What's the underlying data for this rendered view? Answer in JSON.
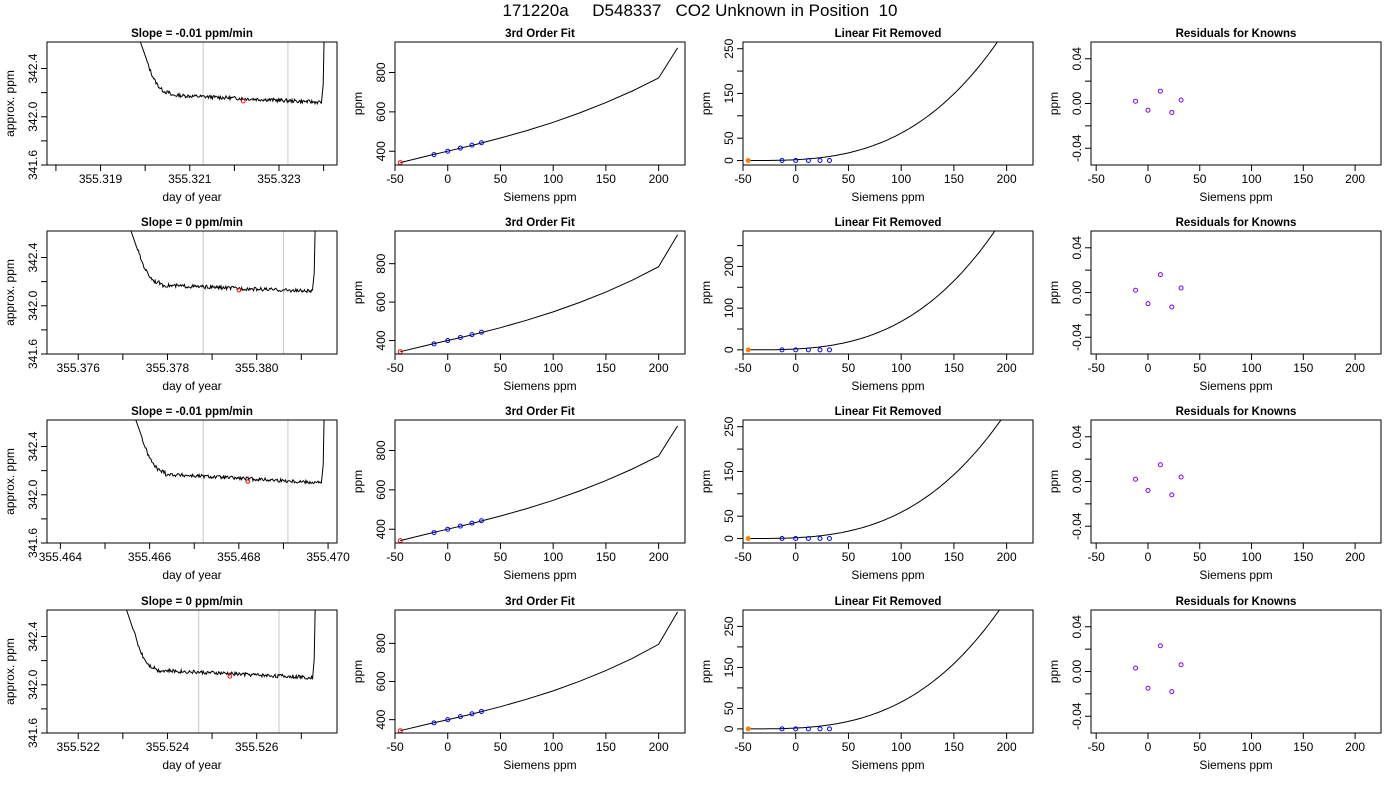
{
  "page": {
    "title": "171220a     D548337   CO2 Unknown in Position  10"
  },
  "chart_data": [
    {
      "type": "line",
      "title": "Slope =  -0.01  ppm/min",
      "xlabel": "day of year",
      "ylabel": "approx. ppm",
      "xlim": [
        355.3178,
        355.3243
      ],
      "ylim": [
        341.6,
        342.62
      ],
      "xticks": [
        "355.319",
        "355.321",
        "355.323"
      ],
      "xticks_minor": [
        355.318,
        355.32,
        355.322,
        355.324
      ],
      "yticks": [
        "341.6",
        "342.0",
        "342.4"
      ],
      "yticks_minor": [
        341.8,
        342.2
      ],
      "vlines": [
        355.3213,
        355.3232
      ],
      "series_color": "#000000",
      "vline_color": "#c8c8c8",
      "series": {
        "x_start": 355.3197,
        "x_spike_end": 355.32003,
        "x_flat_start": 355.32055,
        "x_end": 355.32395,
        "level_start": 342.18,
        "level_end": 342.12,
        "spike_top": 342.65
      },
      "marker": {
        "x": 355.3222,
        "y": 342.13,
        "color": "#ff0000"
      }
    },
    {
      "type": "scatter",
      "title": "3rd Order Fit",
      "xlabel": "Siemens ppm",
      "ylabel": "ppm",
      "xlim": [
        -50,
        225
      ],
      "ylim": [
        330,
        955
      ],
      "xticks": [
        -50,
        0,
        50,
        100,
        150,
        200
      ],
      "yticks": [
        400,
        600,
        800
      ],
      "curve": {
        "x": [
          -45,
          -20,
          0,
          25,
          50,
          75,
          100,
          125,
          150,
          175,
          200,
          218
        ],
        "y": [
          342,
          375,
          400,
          432,
          467,
          505,
          547,
          594,
          647,
          706,
          772,
          925
        ]
      },
      "known_points": {
        "x": [
          -13,
          0,
          12,
          23,
          32
        ],
        "y": [
          383,
          400,
          416,
          431,
          443
        ],
        "color": "#0000ff"
      },
      "unknown_point": {
        "x": -45,
        "y": 342,
        "color": "#ff0000"
      }
    },
    {
      "type": "scatter",
      "title": "Linear Fit Removed",
      "xlabel": "Siemens ppm",
      "ylabel": "ppm",
      "xlim": [
        -50,
        225
      ],
      "ylim": [
        -10,
        265
      ],
      "xticks": [
        -50,
        0,
        50,
        100,
        150,
        200
      ],
      "yticks": [
        0,
        50,
        150,
        250
      ],
      "yticks_minor": [
        100,
        200
      ],
      "curve_coef": 2.45e-05,
      "curve_x_end": 218,
      "known_points": {
        "x": [
          -13,
          0,
          12,
          23,
          32
        ],
        "y": [
          0,
          0,
          0,
          0,
          0
        ],
        "color": "#0000ff"
      },
      "unknown_point": {
        "x": -45,
        "y": 0,
        "color": "#ff7f00"
      }
    },
    {
      "type": "scatter",
      "title": "Residuals for Knowns",
      "xlabel": "Siemens ppm",
      "ylabel": "ppm",
      "xlim": [
        -55,
        225
      ],
      "ylim": [
        -0.055,
        0.055
      ],
      "xticks": [
        -50,
        0,
        50,
        100,
        150,
        200
      ],
      "yticks": [
        "-0.04",
        "0.00",
        "0.04"
      ],
      "yticks_minor": [
        -0.02,
        0.02
      ],
      "points": {
        "x": [
          -12,
          0,
          12,
          23,
          32
        ],
        "y": [
          0.002,
          -0.006,
          0.011,
          -0.008,
          0.003
        ],
        "color": "#8000ff"
      }
    },
    {
      "type": "line",
      "title": "Slope =  0  ppm/min",
      "xlabel": "day of year",
      "ylabel": "approx. ppm",
      "xlim": [
        355.3753,
        355.3818
      ],
      "ylim": [
        341.6,
        342.62
      ],
      "xticks": [
        "355.376",
        "355.378",
        "355.380"
      ],
      "xticks_minor": [
        355.377,
        355.379,
        355.381
      ],
      "yticks": [
        "341.6",
        "342.0",
        "342.4"
      ],
      "yticks_minor": [
        341.8,
        342.2
      ],
      "vlines": [
        355.3788,
        355.3806
      ],
      "series_color": "#000000",
      "vline_color": "#c8c8c8",
      "series": {
        "x_start": 355.377,
        "x_spike_end": 355.37733,
        "x_flat_start": 355.37785,
        "x_end": 355.38125,
        "level_start": 342.17,
        "level_end": 342.12,
        "spike_top": 342.65
      },
      "marker": {
        "x": 355.3796,
        "y": 342.13,
        "color": "#ff0000"
      }
    },
    {
      "type": "scatter",
      "title": "3rd Order Fit",
      "xlabel": "Siemens ppm",
      "ylabel": "ppm",
      "xlim": [
        -50,
        225
      ],
      "ylim": [
        330,
        970
      ],
      "xticks": [
        -50,
        0,
        50,
        100,
        150,
        200
      ],
      "yticks": [
        400,
        600,
        800
      ],
      "curve": {
        "x": [
          -45,
          -20,
          0,
          25,
          50,
          75,
          100,
          125,
          150,
          175,
          200,
          218
        ],
        "y": [
          342,
          375,
          400,
          432,
          467,
          506,
          549,
          598,
          652,
          714,
          784,
          950
        ]
      },
      "known_points": {
        "x": [
          -13,
          0,
          12,
          23,
          32
        ],
        "y": [
          383,
          400,
          416,
          431,
          443
        ],
        "color": "#0000ff"
      },
      "unknown_point": {
        "x": -45,
        "y": 342,
        "color": "#ff0000"
      }
    },
    {
      "type": "scatter",
      "title": "Linear Fit Removed",
      "xlabel": "Siemens ppm",
      "ylabel": "ppm",
      "xlim": [
        -50,
        225
      ],
      "ylim": [
        -10,
        285
      ],
      "xticks": [
        -50,
        0,
        50,
        100,
        150,
        200
      ],
      "yticks": [
        0,
        100,
        200
      ],
      "yticks_minor": [
        50,
        150,
        250
      ],
      "curve_coef": 2.72e-05,
      "curve_x_end": 218,
      "known_points": {
        "x": [
          -13,
          0,
          12,
          23,
          32
        ],
        "y": [
          0,
          0,
          0,
          0,
          0
        ],
        "color": "#0000ff"
      },
      "unknown_point": {
        "x": -45,
        "y": 0,
        "color": "#ff7f00"
      }
    },
    {
      "type": "scatter",
      "title": "Residuals for Knowns",
      "xlabel": "Siemens ppm",
      "ylabel": "ppm",
      "xlim": [
        -55,
        225
      ],
      "ylim": [
        -0.055,
        0.055
      ],
      "xticks": [
        -50,
        0,
        50,
        100,
        150,
        200
      ],
      "yticks": [
        "-0.04",
        "0.00",
        "0.04"
      ],
      "yticks_minor": [
        -0.02,
        0.02
      ],
      "points": {
        "x": [
          -12,
          0,
          12,
          23,
          32
        ],
        "y": [
          0.002,
          -0.01,
          0.016,
          -0.013,
          0.004
        ],
        "color": "#8000ff"
      }
    },
    {
      "type": "line",
      "title": "Slope =  -0.01  ppm/min",
      "xlabel": "day of year",
      "ylabel": "approx. ppm",
      "xlim": [
        355.4637,
        355.4702
      ],
      "ylim": [
        341.6,
        342.62
      ],
      "xticks": [
        "355.464",
        "355.466",
        "355.468",
        "355.470"
      ],
      "xticks_minor": [
        355.465,
        355.467,
        355.469
      ],
      "yticks": [
        "341.6",
        "342.0",
        "342.4"
      ],
      "yticks_minor": [
        341.8,
        342.2
      ],
      "vlines": [
        355.4672,
        355.4691
      ],
      "series_color": "#000000",
      "vline_color": "#c8c8c8",
      "series": {
        "x_start": 355.4655,
        "x_spike_end": 355.46583,
        "x_flat_start": 355.46635,
        "x_end": 355.46985,
        "level_start": 342.17,
        "level_end": 342.1,
        "spike_top": 342.65
      },
      "marker": {
        "x": 355.4682,
        "y": 342.11,
        "color": "#ff0000"
      }
    },
    {
      "type": "scatter",
      "title": "3rd Order Fit",
      "xlabel": "Siemens ppm",
      "ylabel": "ppm",
      "xlim": [
        -50,
        225
      ],
      "ylim": [
        330,
        955
      ],
      "xticks": [
        -50,
        0,
        50,
        100,
        150,
        200
      ],
      "yticks": [
        400,
        600,
        800
      ],
      "curve": {
        "x": [
          -45,
          -20,
          0,
          25,
          50,
          75,
          100,
          125,
          150,
          175,
          200,
          218
        ],
        "y": [
          342,
          375,
          400,
          432,
          467,
          505,
          547,
          594,
          647,
          706,
          772,
          925
        ]
      },
      "known_points": {
        "x": [
          -13,
          0,
          12,
          23,
          32
        ],
        "y": [
          383,
          400,
          416,
          431,
          443
        ],
        "color": "#0000ff"
      },
      "unknown_point": {
        "x": -45,
        "y": 342,
        "color": "#ff0000"
      }
    },
    {
      "type": "scatter",
      "title": "Linear Fit Removed",
      "xlabel": "Siemens ppm",
      "ylabel": "ppm",
      "xlim": [
        -50,
        225
      ],
      "ylim": [
        -10,
        265
      ],
      "xticks": [
        -50,
        0,
        50,
        100,
        150,
        200
      ],
      "yticks": [
        0,
        50,
        150,
        250
      ],
      "yticks_minor": [
        100,
        200
      ],
      "curve_coef": 2.35e-05,
      "curve_x_end": 218,
      "known_points": {
        "x": [
          -13,
          0,
          12,
          23,
          32
        ],
        "y": [
          0,
          0,
          0,
          0,
          0
        ],
        "color": "#0000ff"
      },
      "unknown_point": {
        "x": -45,
        "y": 0,
        "color": "#ff7f00"
      }
    },
    {
      "type": "scatter",
      "title": "Residuals for Knowns",
      "xlabel": "Siemens ppm",
      "ylabel": "ppm",
      "xlim": [
        -55,
        225
      ],
      "ylim": [
        -0.055,
        0.055
      ],
      "xticks": [
        -50,
        0,
        50,
        100,
        150,
        200
      ],
      "yticks": [
        "-0.04",
        "0.00",
        "0.04"
      ],
      "yticks_minor": [
        -0.02,
        0.02
      ],
      "points": {
        "x": [
          -12,
          0,
          12,
          23,
          32
        ],
        "y": [
          0.002,
          -0.008,
          0.015,
          -0.012,
          0.004
        ],
        "color": "#8000ff"
      }
    },
    {
      "type": "line",
      "title": "Slope =  0  ppm/min",
      "xlabel": "day of year",
      "ylabel": "approx. ppm",
      "xlim": [
        355.5213,
        355.5278
      ],
      "ylim": [
        341.6,
        342.62
      ],
      "xticks": [
        "355.522",
        "355.524",
        "355.526"
      ],
      "xticks_minor": [
        355.523,
        355.525,
        355.527
      ],
      "yticks": [
        "341.6",
        "342.0",
        "342.4"
      ],
      "yticks_minor": [
        341.8,
        342.2
      ],
      "vlines": [
        355.5247,
        355.5265
      ],
      "series_color": "#000000",
      "vline_color": "#c8c8c8",
      "series": {
        "x_start": 355.5229,
        "x_spike_end": 355.52323,
        "x_flat_start": 355.52375,
        "x_end": 355.52725,
        "level_start": 342.12,
        "level_end": 342.06,
        "spike_top": 342.65
      },
      "marker": {
        "x": 355.5254,
        "y": 342.07,
        "color": "#ff0000"
      }
    },
    {
      "type": "scatter",
      "title": "3rd Order Fit",
      "xlabel": "Siemens ppm",
      "ylabel": "ppm",
      "xlim": [
        -50,
        225
      ],
      "ylim": [
        330,
        975
      ],
      "xticks": [
        -50,
        0,
        50,
        100,
        150,
        200
      ],
      "yticks": [
        400,
        600,
        800
      ],
      "curve": {
        "x": [
          -45,
          -20,
          0,
          25,
          50,
          75,
          100,
          125,
          150,
          175,
          200,
          218
        ],
        "y": [
          342,
          375,
          400,
          432,
          468,
          507,
          551,
          601,
          657,
          721,
          795,
          965
        ]
      },
      "known_points": {
        "x": [
          -13,
          0,
          12,
          23,
          32
        ],
        "y": [
          383,
          400,
          416,
          431,
          443
        ],
        "color": "#0000ff"
      },
      "unknown_point": {
        "x": -45,
        "y": 342,
        "color": "#ff0000"
      }
    },
    {
      "type": "scatter",
      "title": "Linear Fit Removed",
      "xlabel": "Siemens ppm",
      "ylabel": "ppm",
      "xlim": [
        -50,
        225
      ],
      "ylim": [
        -10,
        290
      ],
      "xticks": [
        -50,
        0,
        50,
        100,
        150,
        200
      ],
      "yticks": [
        0,
        50,
        150,
        250
      ],
      "yticks_minor": [
        100,
        200
      ],
      "curve_coef": 2.62e-05,
      "curve_x_end": 218,
      "known_points": {
        "x": [
          -13,
          0,
          12,
          23,
          32
        ],
        "y": [
          0,
          0,
          0,
          0,
          0
        ],
        "color": "#0000ff"
      },
      "unknown_point": {
        "x": -45,
        "y": 0,
        "color": "#ff7f00"
      }
    },
    {
      "type": "scatter",
      "title": "Residuals for Knowns",
      "xlabel": "Siemens ppm",
      "ylabel": "ppm",
      "xlim": [
        -55,
        225
      ],
      "ylim": [
        -0.055,
        0.055
      ],
      "xticks": [
        -50,
        0,
        50,
        100,
        150,
        200
      ],
      "yticks": [
        "-0.04",
        "0.00",
        "0.04"
      ],
      "yticks_minor": [
        -0.02,
        0.02
      ],
      "points": {
        "x": [
          -12,
          0,
          12,
          23,
          32
        ],
        "y": [
          0.003,
          -0.015,
          0.023,
          -0.018,
          0.006
        ],
        "color": "#8000ff"
      }
    }
  ]
}
